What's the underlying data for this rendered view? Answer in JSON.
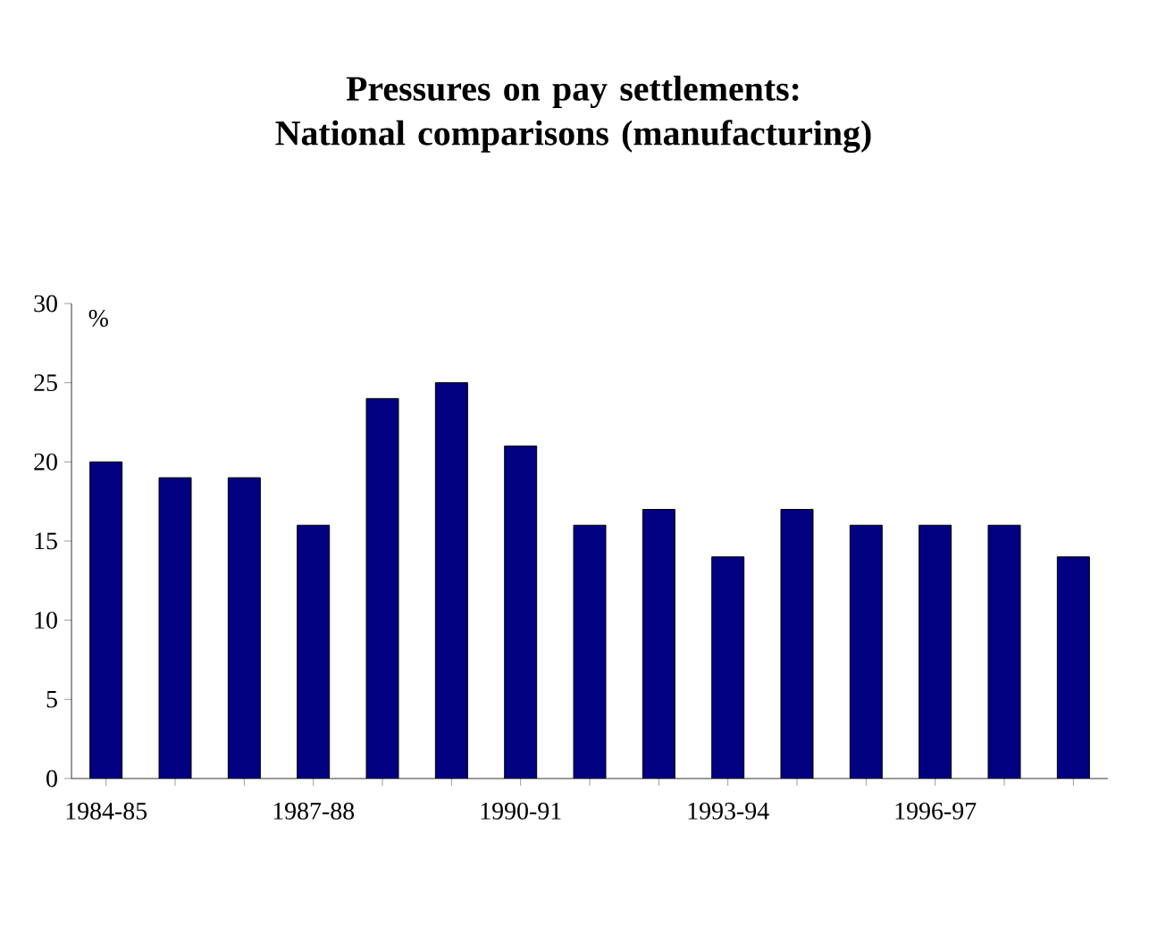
{
  "chart_data": {
    "type": "bar",
    "title": "Pressures on pay settlements: National comparisons (manufacturing)",
    "ylabel": "%",
    "categories": [
      "1984-85",
      null,
      null,
      "1987-88",
      null,
      null,
      "1990-91",
      null,
      null,
      "1993-94",
      null,
      null,
      "1996-97",
      null,
      null
    ],
    "values": [
      20,
      19,
      19,
      16,
      24,
      25,
      21,
      16,
      17,
      14,
      17,
      16,
      16,
      16,
      14
    ],
    "color": "#000080",
    "ylim": [
      0,
      30
    ],
    "yticks": [
      0,
      5,
      10,
      15,
      20,
      25,
      30
    ],
    "grid": false
  }
}
